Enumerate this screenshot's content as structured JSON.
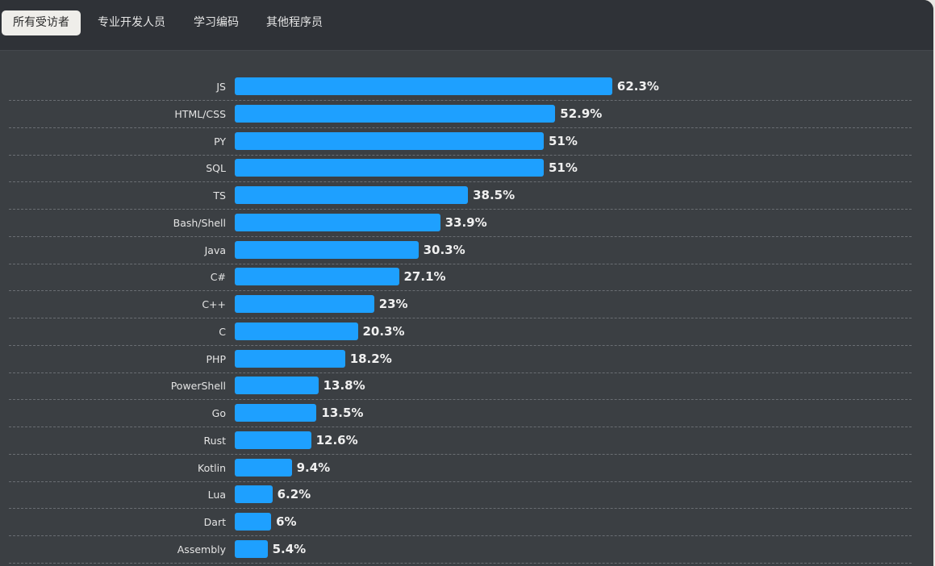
{
  "tabs": [
    {
      "label": "所有受访者",
      "active": true
    },
    {
      "label": "专业开发人员",
      "active": false
    },
    {
      "label": "学习编码",
      "active": false
    },
    {
      "label": "其他程序员",
      "active": false
    }
  ],
  "colors": {
    "bar": "#1ea0ff",
    "background": "#3b3f43",
    "header": "#2f3237"
  },
  "chart_data": {
    "type": "bar",
    "orientation": "horizontal",
    "unit": "%",
    "categories": [
      "JS",
      "HTML/CSS",
      "PY",
      "SQL",
      "TS",
      "Bash/Shell",
      "Java",
      "C#",
      "C++",
      "C",
      "PHP",
      "PowerShell",
      "Go",
      "Rust",
      "Kotlin",
      "Lua",
      "Dart",
      "Assembly"
    ],
    "values": [
      62.3,
      52.9,
      51,
      51,
      38.5,
      33.9,
      30.3,
      27.1,
      23,
      20.3,
      18.2,
      13.8,
      13.5,
      12.6,
      9.4,
      6.2,
      6,
      5.4
    ],
    "value_labels": [
      "62.3%",
      "52.9%",
      "51%",
      "51%",
      "38.5%",
      "33.9%",
      "30.3%",
      "27.1%",
      "23%",
      "20.3%",
      "18.2%",
      "13.8%",
      "13.5%",
      "12.6%",
      "9.4%",
      "6.2%",
      "6%",
      "5.4%"
    ],
    "xlim": [
      0,
      100
    ],
    "grid": "dashed row separators"
  }
}
